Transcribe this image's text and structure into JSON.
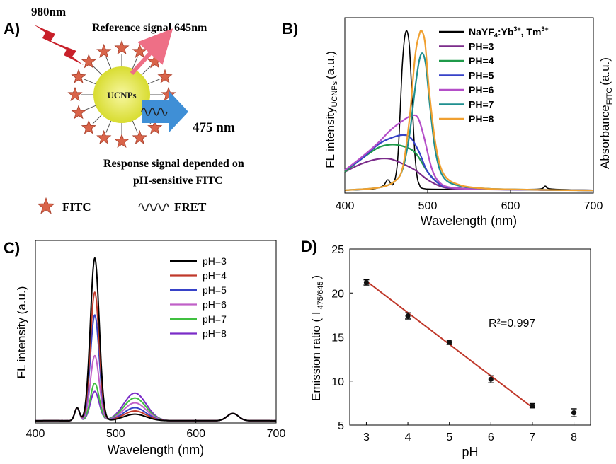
{
  "panels": {
    "A": {
      "label": "A)",
      "excitation": "980nm",
      "reference": "Reference signal 645nm",
      "core": "UCNPs",
      "emission": "475 nm",
      "response_line1": "Response signal depended on",
      "response_line2": "pH-sensitive FITC",
      "legend_fitc": "FITC",
      "legend_fret": "FRET",
      "colors": {
        "star": "#d9644a",
        "core": "#e6e84a",
        "arrow_blue": "#3f8fd6",
        "arrow_pink": "#ee6f86",
        "bolt": "#c8202a"
      }
    },
    "B": {
      "label": "B)"
    },
    "C": {
      "label": "C)"
    },
    "D": {
      "label": "D)",
      "annotation": "R²=0.997"
    }
  },
  "chart_data": [
    {
      "type": "line",
      "panel": "B",
      "xlabel": "Wavelength (nm)",
      "ylabel": "FL intensity UCNPs (a.u.)",
      "ylabel_main": "FL intensity",
      "ylabel_sub": "UCNPs",
      "ylabel_unit": "(a.u.)",
      "y2label": "Absorbance FITC (a.u.)",
      "y2label_main": "Absorbance",
      "y2label_sub": "FITC",
      "y2label_unit": "(a.u.)",
      "xlim": [
        400,
        700
      ],
      "xticks": [
        "400",
        "500",
        "600",
        "700"
      ],
      "legend_position": "top-right",
      "series": [
        {
          "name": "NaYF4:Yb3+, Tm3+",
          "name_base": "NaYF",
          "name_sub": "4",
          "name_mid": ":Yb",
          "name_sup1": "3+",
          "name_end": ", Tm",
          "name_sup2": "3+",
          "color": "#000000",
          "x": [
            400,
            430,
            440,
            447,
            452,
            458,
            463,
            466,
            469,
            472,
            475,
            478,
            481,
            484,
            487,
            490,
            495,
            520,
            600,
            635,
            642,
            650,
            700
          ],
          "y": [
            0.005,
            0.01,
            0.02,
            0.035,
            0.07,
            0.04,
            0.15,
            0.4,
            0.75,
            0.95,
            1.0,
            0.9,
            0.6,
            0.28,
            0.1,
            0.04,
            0.015,
            0.01,
            0.01,
            0.012,
            0.03,
            0.012,
            0.005
          ]
        },
        {
          "name": "PH=3",
          "color": "#7b2c8a",
          "x": [
            400,
            420,
            440,
            455,
            470,
            485,
            500,
            515,
            530,
            560,
            600,
            650,
            700
          ],
          "y": [
            0.12,
            0.17,
            0.2,
            0.2,
            0.17,
            0.13,
            0.07,
            0.03,
            0.015,
            0.01,
            0.008,
            0.006,
            0.004
          ]
        },
        {
          "name": "PH=4",
          "color": "#1f9a4a",
          "x": [
            400,
            420,
            440,
            455,
            470,
            485,
            500,
            515,
            530,
            560,
            600,
            650,
            700
          ],
          "y": [
            0.12,
            0.2,
            0.27,
            0.29,
            0.28,
            0.24,
            0.12,
            0.04,
            0.02,
            0.012,
            0.009,
            0.006,
            0.004
          ]
        },
        {
          "name": "PH=5",
          "color": "#3742c8",
          "x": [
            400,
            420,
            440,
            455,
            470,
            480,
            490,
            500,
            515,
            530,
            560,
            600,
            650,
            700
          ],
          "y": [
            0.13,
            0.2,
            0.29,
            0.33,
            0.35,
            0.33,
            0.24,
            0.12,
            0.04,
            0.02,
            0.012,
            0.009,
            0.006,
            0.004
          ]
        },
        {
          "name": "PH=6",
          "color": "#b44ec8",
          "x": [
            400,
            420,
            440,
            455,
            470,
            480,
            488,
            495,
            505,
            515,
            530,
            560,
            600,
            650,
            700
          ],
          "y": [
            0.13,
            0.21,
            0.3,
            0.38,
            0.44,
            0.47,
            0.46,
            0.35,
            0.14,
            0.05,
            0.02,
            0.012,
            0.009,
            0.006,
            0.004
          ]
        },
        {
          "name": "PH=7",
          "color": "#1f8f8f",
          "x": [
            400,
            440,
            460,
            470,
            478,
            485,
            490,
            494,
            498,
            503,
            510,
            520,
            540,
            570,
            600,
            650,
            700
          ],
          "y": [
            0.005,
            0.02,
            0.06,
            0.14,
            0.35,
            0.65,
            0.82,
            0.86,
            0.78,
            0.52,
            0.23,
            0.08,
            0.03,
            0.015,
            0.01,
            0.006,
            0.004
          ]
        },
        {
          "name": "PH=8",
          "color": "#f0a030",
          "x": [
            400,
            440,
            460,
            470,
            478,
            485,
            490,
            493,
            497,
            502,
            510,
            520,
            540,
            570,
            600,
            650,
            700
          ],
          "y": [
            0.005,
            0.02,
            0.06,
            0.15,
            0.45,
            0.85,
            0.98,
            1.0,
            0.92,
            0.62,
            0.28,
            0.1,
            0.035,
            0.015,
            0.01,
            0.006,
            0.004
          ]
        }
      ]
    },
    {
      "type": "line",
      "panel": "C",
      "xlabel": "Wavelength (nm)",
      "ylabel": "FL intensity (a.u.)",
      "xlim": [
        400,
        700
      ],
      "xticks": [
        "400",
        "500",
        "600",
        "700"
      ],
      "legend_position": "top-right",
      "series": [
        {
          "name": "pH=3",
          "color": "#000000",
          "main": 1.0,
          "shoulder": 0.15,
          "green": 0.04
        },
        {
          "name": "pH=4",
          "color": "#c0392b",
          "main": 0.79,
          "shoulder": 0.15,
          "green": 0.06
        },
        {
          "name": "pH=5",
          "color": "#3742c8",
          "main": 0.65,
          "shoulder": 0.15,
          "green": 0.08
        },
        {
          "name": "pH=6",
          "color": "#c060c8",
          "main": 0.4,
          "shoulder": 0.15,
          "green": 0.11
        },
        {
          "name": "pH=7",
          "color": "#40c040",
          "main": 0.23,
          "shoulder": 0.15,
          "green": 0.14
        },
        {
          "name": "pH=8",
          "color": "#7b2cc8",
          "main": 0.18,
          "shoulder": 0.15,
          "green": 0.17
        }
      ]
    },
    {
      "type": "scatter",
      "panel": "D",
      "xlabel": "pH",
      "ylabel": "Emission ratio ( I 475/645)",
      "ylabel_main": "Emission ratio ( I",
      "ylabel_sub": "475/645",
      "ylabel_close": ")",
      "xlim": [
        2.6,
        8.4
      ],
      "ylim": [
        5,
        25
      ],
      "xticks": [
        "3",
        "4",
        "5",
        "6",
        "7",
        "8"
      ],
      "yticks": [
        "5",
        "10",
        "15",
        "20",
        "25"
      ],
      "points": [
        {
          "x": 3,
          "y": 21.2,
          "err": 0.3
        },
        {
          "x": 4,
          "y": 17.4,
          "err": 0.35
        },
        {
          "x": 5,
          "y": 14.4,
          "err": 0.25
        },
        {
          "x": 6,
          "y": 10.2,
          "err": 0.4
        },
        {
          "x": 7,
          "y": 7.2,
          "err": 0.25
        },
        {
          "x": 8,
          "y": 6.4,
          "err": 0.45
        }
      ],
      "fit": {
        "x": [
          3,
          7
        ],
        "y": [
          21.35,
          7.0
        ],
        "color": "#c0392b"
      }
    }
  ]
}
